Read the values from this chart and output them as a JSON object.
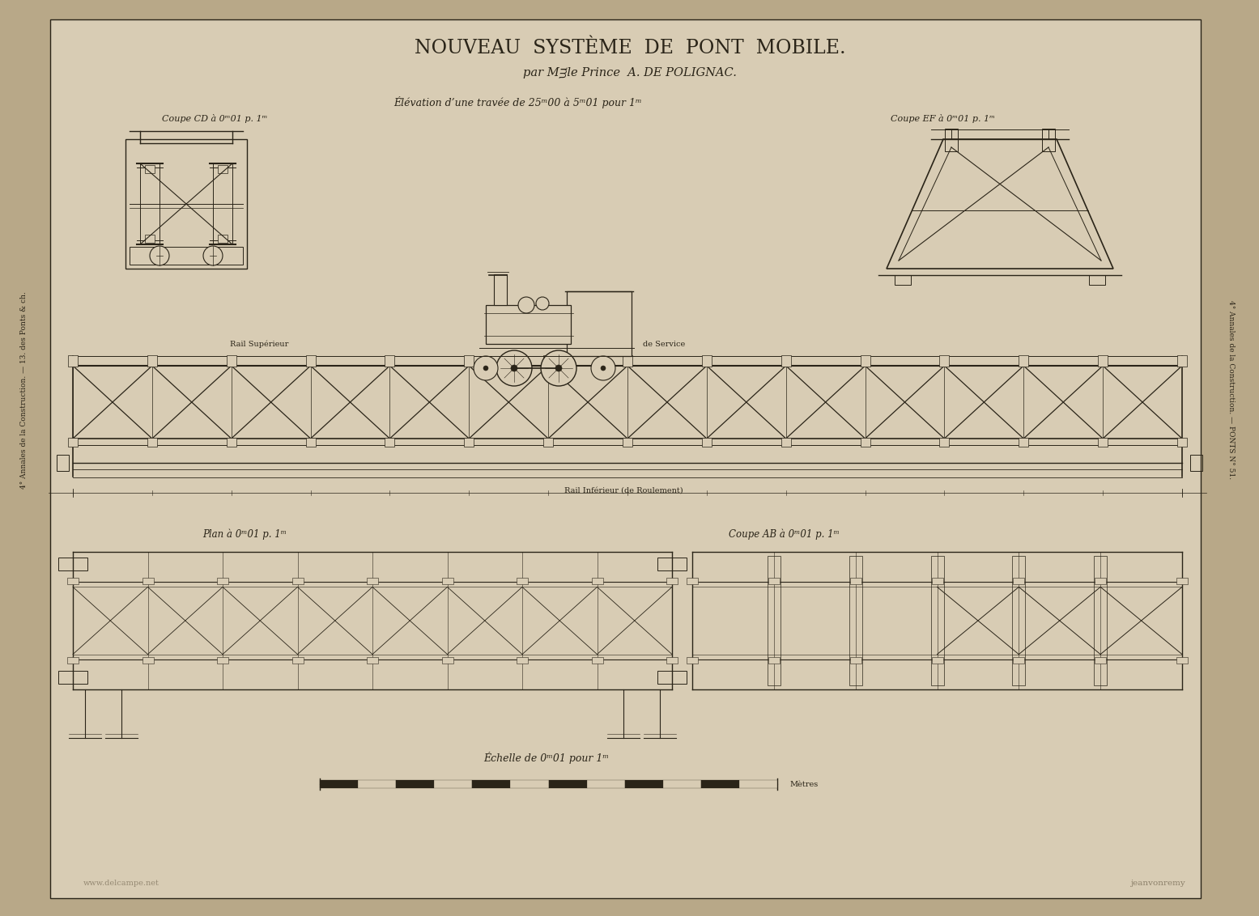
{
  "title": "NOUVEAU  SYSTÈME  DE  PONT  MOBILE.",
  "subtitle": "par Mᴟle Prince  A. DE POLIGNAC.",
  "elevation_label": "Élévation d’une travée de 25ᵐ00 à 5ᵐ01 pour 1ᵐ",
  "coupe_cd_label": "Coupe CD à 0ᵐ01 p. 1ᵐ",
  "coupe_ef_label": "Coupe EF à 0ᵐ01 p. 1ᵐ",
  "coupe_ab_label": "Coupe AB à 0ᵐ01 p. 1ᵐ",
  "plan_label": "Plan à 0ᵐ01 p. 1ᵐ",
  "scale_label": "Échelle de 0ᵐ01 pour 1ᵐ",
  "watermark": "jeanvonremy",
  "bottom_left_watermark": "www.delcampe.net",
  "bg_color": "#b8a888",
  "paper_color": "#d8ccb4",
  "line_color": "#2a2418",
  "text_color": "#2a2418",
  "dim_color": "#555040"
}
